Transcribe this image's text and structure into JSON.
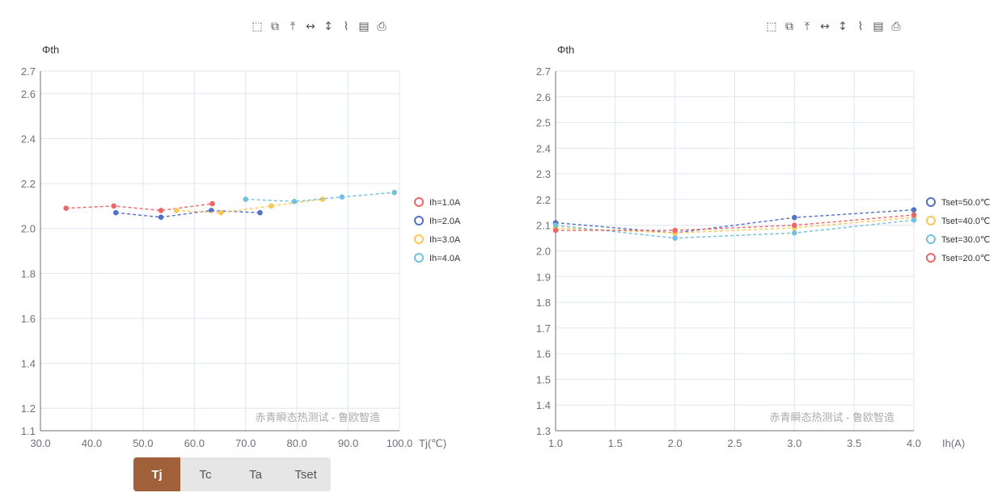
{
  "toolbox_icons": [
    "zoom-icon",
    "zoom-reset-icon",
    "restore-icon",
    "brush-horizontal-icon",
    "brush-vertical-icon",
    "line-chart-icon",
    "data-view-icon",
    "save-image-icon"
  ],
  "tabs": [
    {
      "label": "Tj",
      "active": true
    },
    {
      "label": "Tc",
      "active": false
    },
    {
      "label": "Ta",
      "active": false
    },
    {
      "label": "Tset",
      "active": false
    }
  ],
  "chart_data": [
    {
      "type": "line",
      "ylabel": "Φth",
      "xlabel": "Tj(℃)",
      "watermark": "赤青瞬态热测试 - 鲁欧智造",
      "xlim": [
        30,
        100
      ],
      "ylim": [
        1.1,
        2.7
      ],
      "x_ticks": [
        "30.0",
        "40.0",
        "50.0",
        "60.0",
        "70.0",
        "80.0",
        "90.0",
        "100.0"
      ],
      "y_ticks": [
        "1.1",
        "1.2",
        "1.4",
        "1.6",
        "1.8",
        "2.0",
        "2.2",
        "2.4",
        "2.6",
        "2.7"
      ],
      "y_tick_values": [
        1.1,
        1.2,
        1.4,
        1.6,
        1.8,
        2.0,
        2.2,
        2.4,
        2.6,
        2.7
      ],
      "grid": true,
      "legend_position": "right",
      "series": [
        {
          "name": "Ih=1.0A",
          "color": "#ee6666",
          "points": [
            [
              35.0,
              2.09
            ],
            [
              44.3,
              2.1
            ],
            [
              53.5,
              2.08
            ],
            [
              63.5,
              2.11
            ]
          ]
        },
        {
          "name": "Ih=2.0A",
          "color": "#5470c6",
          "points": [
            [
              44.7,
              2.07
            ],
            [
              53.5,
              2.05
            ],
            [
              63.3,
              2.08
            ],
            [
              72.8,
              2.07
            ]
          ]
        },
        {
          "name": "Ih=3.0A",
          "color": "#fac858",
          "points": [
            [
              56.5,
              2.08
            ],
            [
              65.2,
              2.07
            ],
            [
              75.0,
              2.1
            ],
            [
              85.0,
              2.13
            ]
          ]
        },
        {
          "name": "Ih=4.0A",
          "color": "#73c0de",
          "points": [
            [
              70.0,
              2.13
            ],
            [
              79.5,
              2.12
            ],
            [
              88.8,
              2.14
            ],
            [
              99.0,
              2.16
            ]
          ]
        }
      ]
    },
    {
      "type": "line",
      "ylabel": "Φth",
      "xlabel": "Ih(A)",
      "watermark": "赤青瞬态热测试 - 鲁欧智造",
      "xlim": [
        1.0,
        4.0
      ],
      "ylim": [
        1.3,
        2.7
      ],
      "x_ticks": [
        "1.0",
        "1.5",
        "2.0",
        "2.5",
        "3.0",
        "3.5",
        "4.0"
      ],
      "y_ticks": [
        "1.3",
        "1.4",
        "1.5",
        "1.6",
        "1.7",
        "1.8",
        "1.9",
        "2.0",
        "2.1",
        "2.2",
        "2.3",
        "2.4",
        "2.5",
        "2.6",
        "2.7"
      ],
      "y_tick_values": [
        1.3,
        1.4,
        1.5,
        1.6,
        1.7,
        1.8,
        1.9,
        2.0,
        2.1,
        2.2,
        2.3,
        2.4,
        2.5,
        2.6,
        2.7
      ],
      "grid": true,
      "legend_position": "right",
      "series": [
        {
          "name": "Tset=50.0℃",
          "color": "#5470c6",
          "points": [
            [
              1.0,
              2.11
            ],
            [
              2.0,
              2.07
            ],
            [
              3.0,
              2.13
            ],
            [
              4.0,
              2.16
            ]
          ]
        },
        {
          "name": "Tset=40.0℃",
          "color": "#fac858",
          "points": [
            [
              1.0,
              2.09
            ],
            [
              2.0,
              2.07
            ],
            [
              3.0,
              2.09
            ],
            [
              4.0,
              2.13
            ]
          ]
        },
        {
          "name": "Tset=30.0℃",
          "color": "#73c0de",
          "points": [
            [
              1.0,
              2.1
            ],
            [
              2.0,
              2.05
            ],
            [
              3.0,
              2.07
            ],
            [
              4.0,
              2.12
            ]
          ]
        },
        {
          "name": "Tset=20.0℃",
          "color": "#ee6666",
          "points": [
            [
              1.0,
              2.08
            ],
            [
              2.0,
              2.08
            ],
            [
              3.0,
              2.1
            ],
            [
              4.0,
              2.14
            ]
          ]
        }
      ]
    }
  ]
}
